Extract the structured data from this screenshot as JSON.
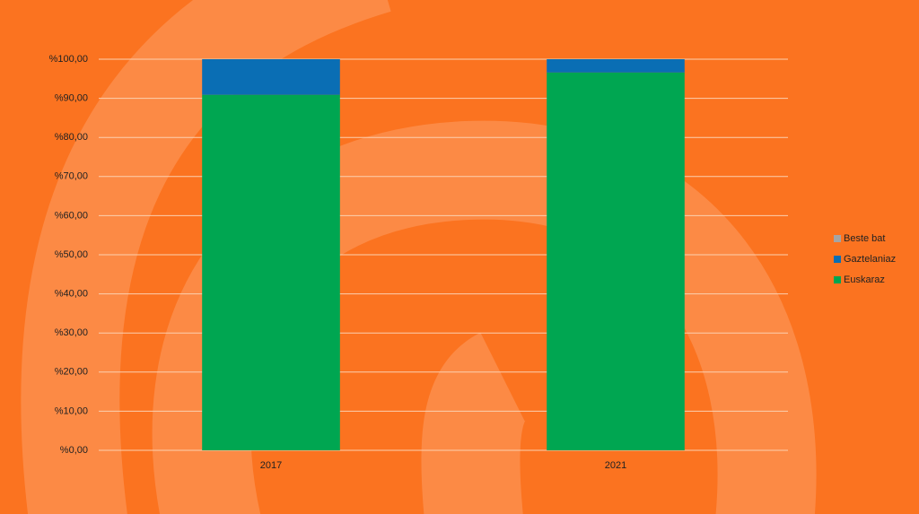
{
  "chart_data": {
    "type": "stacked_bar",
    "categories": [
      "2017",
      "2021"
    ],
    "series": [
      {
        "name": "Euskaraz",
        "color": "#00a651",
        "values": [
          90.9,
          96.6
        ]
      },
      {
        "name": "Gaztelaniaz",
        "color": "#0a6eb4",
        "values": [
          9.1,
          3.4
        ]
      },
      {
        "name": "Beste bat",
        "color": "#a5a5a5",
        "values": [
          0,
          0
        ]
      }
    ],
    "ylim": [
      0,
      100
    ],
    "yticks": [
      {
        "value": 0,
        "label": "%0,00"
      },
      {
        "value": 10,
        "label": "%10,00"
      },
      {
        "value": 20,
        "label": "%20,00"
      },
      {
        "value": 30,
        "label": "%30,00"
      },
      {
        "value": 40,
        "label": "%40,00"
      },
      {
        "value": 50,
        "label": "%50,00"
      },
      {
        "value": 60,
        "label": "%60,00"
      },
      {
        "value": 70,
        "label": "%70,00"
      },
      {
        "value": 80,
        "label": "%80,00"
      },
      {
        "value": 90,
        "label": "%90,00"
      },
      {
        "value": 100,
        "label": "%100,00"
      }
    ],
    "grid": true,
    "legend": "right"
  }
}
